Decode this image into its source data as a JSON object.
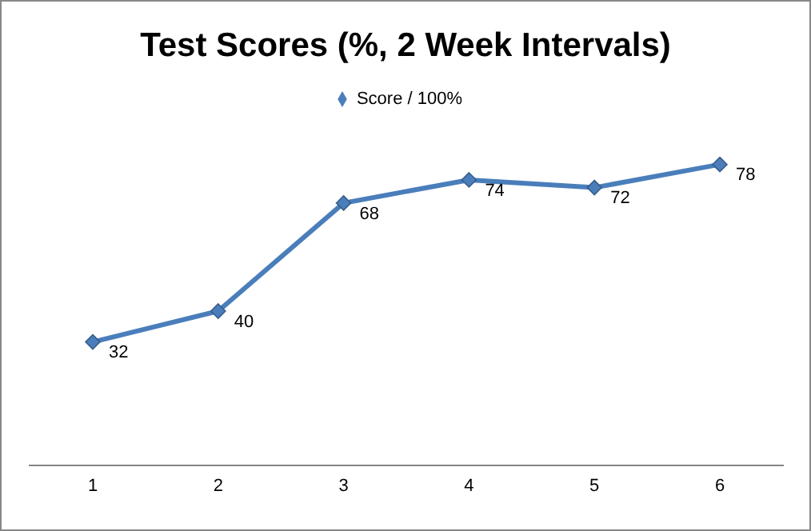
{
  "chart_data": {
    "type": "line",
    "title": "Test Scores (%, 2 Week Intervals)",
    "categories": [
      "1",
      "2",
      "3",
      "4",
      "5",
      "6"
    ],
    "series": [
      {
        "name": "Score / 100%",
        "color": "#4a7ebb",
        "values": [
          32,
          40,
          68,
          74,
          72,
          78
        ]
      }
    ],
    "tick_labels": "x",
    "data_labels": true,
    "legend": "top",
    "marker": "diamond",
    "line_style": "solid"
  }
}
